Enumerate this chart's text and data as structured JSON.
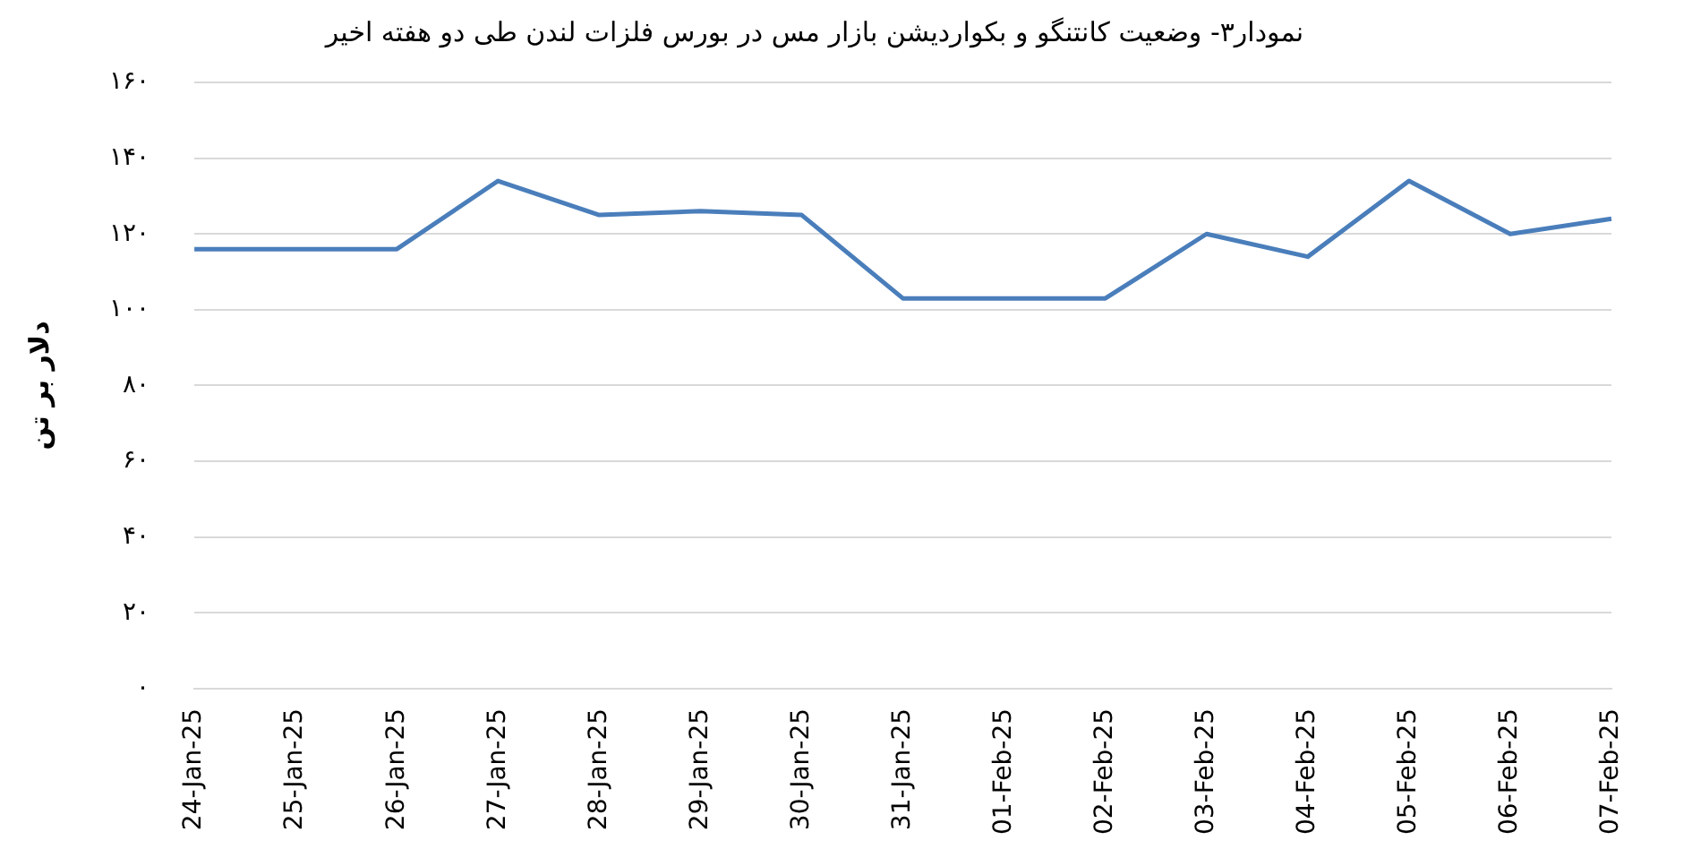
{
  "chart_data": {
    "type": "line",
    "title": "نمودار۳- وضعیت کانتنگو و بکواردیشن بازار مس در بورس فلزات لندن طی دو هفته اخیر",
    "ylabel": "دلار بر تن",
    "categories": [
      "24-Jan-25",
      "25-Jan-25",
      "26-Jan-25",
      "27-Jan-25",
      "28-Jan-25",
      "29-Jan-25",
      "30-Jan-25",
      "31-Jan-25",
      "01-Feb-25",
      "02-Feb-25",
      "03-Feb-25",
      "04-Feb-25",
      "05-Feb-25",
      "06-Feb-25",
      "07-Feb-25"
    ],
    "series": [
      {
        "color": "#4a7ebb",
        "values": [
          116,
          116,
          116,
          134,
          125,
          126,
          125,
          103,
          103,
          103,
          120,
          114,
          134,
          120,
          124
        ]
      }
    ],
    "ylim": [
      0,
      160
    ],
    "yticks": [
      {
        "value": 0,
        "label": "۰"
      },
      {
        "value": 20,
        "label": "۲۰"
      },
      {
        "value": 40,
        "label": "۴۰"
      },
      {
        "value": 60,
        "label": "۶۰"
      },
      {
        "value": 80,
        "label": "۸۰"
      },
      {
        "value": 100,
        "label": "۱۰۰"
      },
      {
        "value": 120,
        "label": "۱۲۰"
      },
      {
        "value": 140,
        "label": "۱۴۰"
      },
      {
        "value": 160,
        "label": "۱۶۰"
      }
    ],
    "grid": "y",
    "legend": false,
    "marker": "none",
    "line_style": "solid"
  }
}
